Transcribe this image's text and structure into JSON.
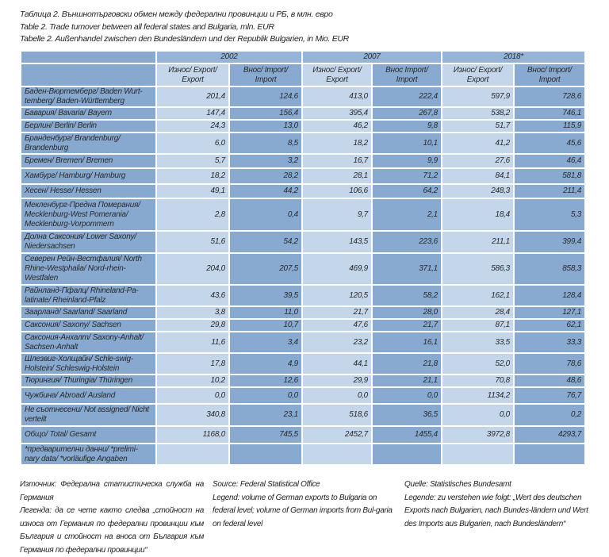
{
  "captions": [
    "Таблица 2. Външнотърговски обмен между федерални провинции и РБ, в млн. евро",
    "Table 2. Trade turnover between all federal states and Bulgaria, mln. EUR",
    "Tabelle 2. Außenhandel zwischen den Bundesländern und der Republik Bulgarien, in Mio. EUR"
  ],
  "colors": {
    "label_cell": "#87a9cf",
    "export_cell": "#c4d6ea",
    "import_cell": "#88aad0",
    "year_cell": "#96b4d8"
  },
  "table": {
    "years": [
      "2002",
      "2007",
      "2018*"
    ],
    "subheaders": [
      "Износ/ Export/ Export",
      "Внос/ Import/ Import",
      "Износ/ Export/ Export",
      "Внос Import/ Import",
      "Износ/ Export/ Export",
      "Внос/ Import/ Import"
    ],
    "rows": [
      {
        "label": "Баден-Вюртемберг/ Baden Wurt-temberg/ Baden-Württemberg",
        "values": [
          "201,4",
          "124,6",
          "413,0",
          "222,4",
          "597,9",
          "728,6"
        ]
      },
      {
        "label": "Бавария/ Bavaria/ Bayern",
        "values": [
          "147,4",
          "156,4",
          "395,4",
          "267,8",
          "538,2",
          "746,1"
        ]
      },
      {
        "label": "Берлин/ Berlin/ Berlin",
        "values": [
          "24,3",
          "13,0",
          "46,2",
          "9,8",
          "51,7",
          "115,9"
        ]
      },
      {
        "label": "Бранденбург/ Brandenburg/ Brandenburg",
        "values": [
          "6,0",
          "8,5",
          "18,2",
          "10,1",
          "41,2",
          "45,6"
        ]
      },
      {
        "label": "Бремен/ Bremen/ Bremen",
        "values": [
          "5,7",
          "3,2",
          "16,7",
          "9,9",
          "27,6",
          "46,4"
        ]
      },
      {
        "label": "Хамбург/ Hamburg/ Hamburg",
        "values": [
          "18,2",
          "28,2",
          "28,1",
          "71,2",
          "84,1",
          "581,8"
        ]
      },
      {
        "label": "Хесен/ Hesse/ Hessen",
        "values": [
          "49,1",
          "44,2",
          "106,6",
          "64,2",
          "248,3",
          "211,4"
        ]
      },
      {
        "label": "Мекленбург-Предна Померания/ Mecklenburg-West Pomerania/ Mecklenburg-Vorpommern",
        "values": [
          "2,8",
          "0,4",
          "9,7",
          "2,1",
          "18,4",
          "5,3"
        ]
      },
      {
        "label": "Долна Саксония/ Lower Saxony/ Niedersachsen",
        "values": [
          "51,6",
          "54,2",
          "143,5",
          "223,6",
          "211,1",
          "399,4"
        ]
      },
      {
        "label": "Северен Рейн-Вестфалия/ North Rhine-Westphalia/ Nord-rhein-Westfalen",
        "values": [
          "204,0",
          "207,5",
          "469,9",
          "371,1",
          "586,3",
          "858,3"
        ]
      },
      {
        "label": "Райнланд-Пфалц/ Rhineland-Pa-latinate/ Rheinland-Pfalz",
        "values": [
          "43,6",
          "39,5",
          "120,5",
          "58,2",
          "162,1",
          "128,4"
        ]
      },
      {
        "label": "Заарланд/ Saarland/ Saarland",
        "values": [
          "3,8",
          "11,0",
          "21,7",
          "28,0",
          "28,4",
          "127,1"
        ]
      },
      {
        "label": "Саксония/ Saxony/ Sachsen",
        "values": [
          "29,8",
          "10,7",
          "47,6",
          "21,7",
          "87,1",
          "62,1"
        ]
      },
      {
        "label": "Саксония-Анхалт/ Saxony-Anhalt/ Sachsen-Anhalt",
        "values": [
          "11,6",
          "3,4",
          "23,2",
          "16,1",
          "33,5",
          "33,3"
        ]
      },
      {
        "label": "Шлезвиг-Холщайн/ Schle-swig-Holstein/ Schleswig-Holstein",
        "values": [
          "17,8",
          "4,9",
          "44,1",
          "21,8",
          "52,0",
          "78,6"
        ]
      },
      {
        "label": "Тюрингия/ Thuringia/ Thüringen",
        "values": [
          "10,2",
          "12,6",
          "29,9",
          "21,1",
          "70,8",
          "48,6"
        ]
      },
      {
        "label": "Чужбина/ Abroad/ Ausland",
        "values": [
          "0,0",
          "0,0",
          "0,0",
          "0,0",
          "1134,2",
          "76,7"
        ]
      },
      {
        "label": "Не съотнесени/ Not assigned/ Nicht verteilt",
        "values": [
          "340,8",
          "23,1",
          "518,6",
          "36,5",
          "0,0",
          "0,2"
        ]
      },
      {
        "label": "Общо/ Total/ Gesamt",
        "values": [
          "1168,0",
          "745,5",
          "2452,7",
          "1455,4",
          "3972,8",
          "4293,7"
        ]
      },
      {
        "label": "*предварителни данни/ *prelimi-nary data/ *vorläufige Angaben",
        "values": [
          "",
          "",
          "",
          "",
          "",
          ""
        ]
      }
    ]
  },
  "notes": {
    "bg": {
      "source": "Източник: Федерална статистическа служба на Германия",
      "legend": "Легенда: да се чете както следва „стойност на износа от Германия по федерални провинции към България и стойност на вноса от България към Германия по федерални провинции“"
    },
    "en": {
      "source": "Source: Federal Statistical Office",
      "legend": "Legend: volume of German exports to Bulgaria on federal level; volume of German imports from Bul-garia on federal level"
    },
    "de": {
      "source": "Quelle: Statistisches Bundesamt",
      "legend": "Legende: zu verstehen wie folgt: „Wert des deutschen Exports nach Bulgarien, nach Bundes-ländern und Wert des Imports aus Bulgarien, nach Bundesländern“"
    }
  }
}
